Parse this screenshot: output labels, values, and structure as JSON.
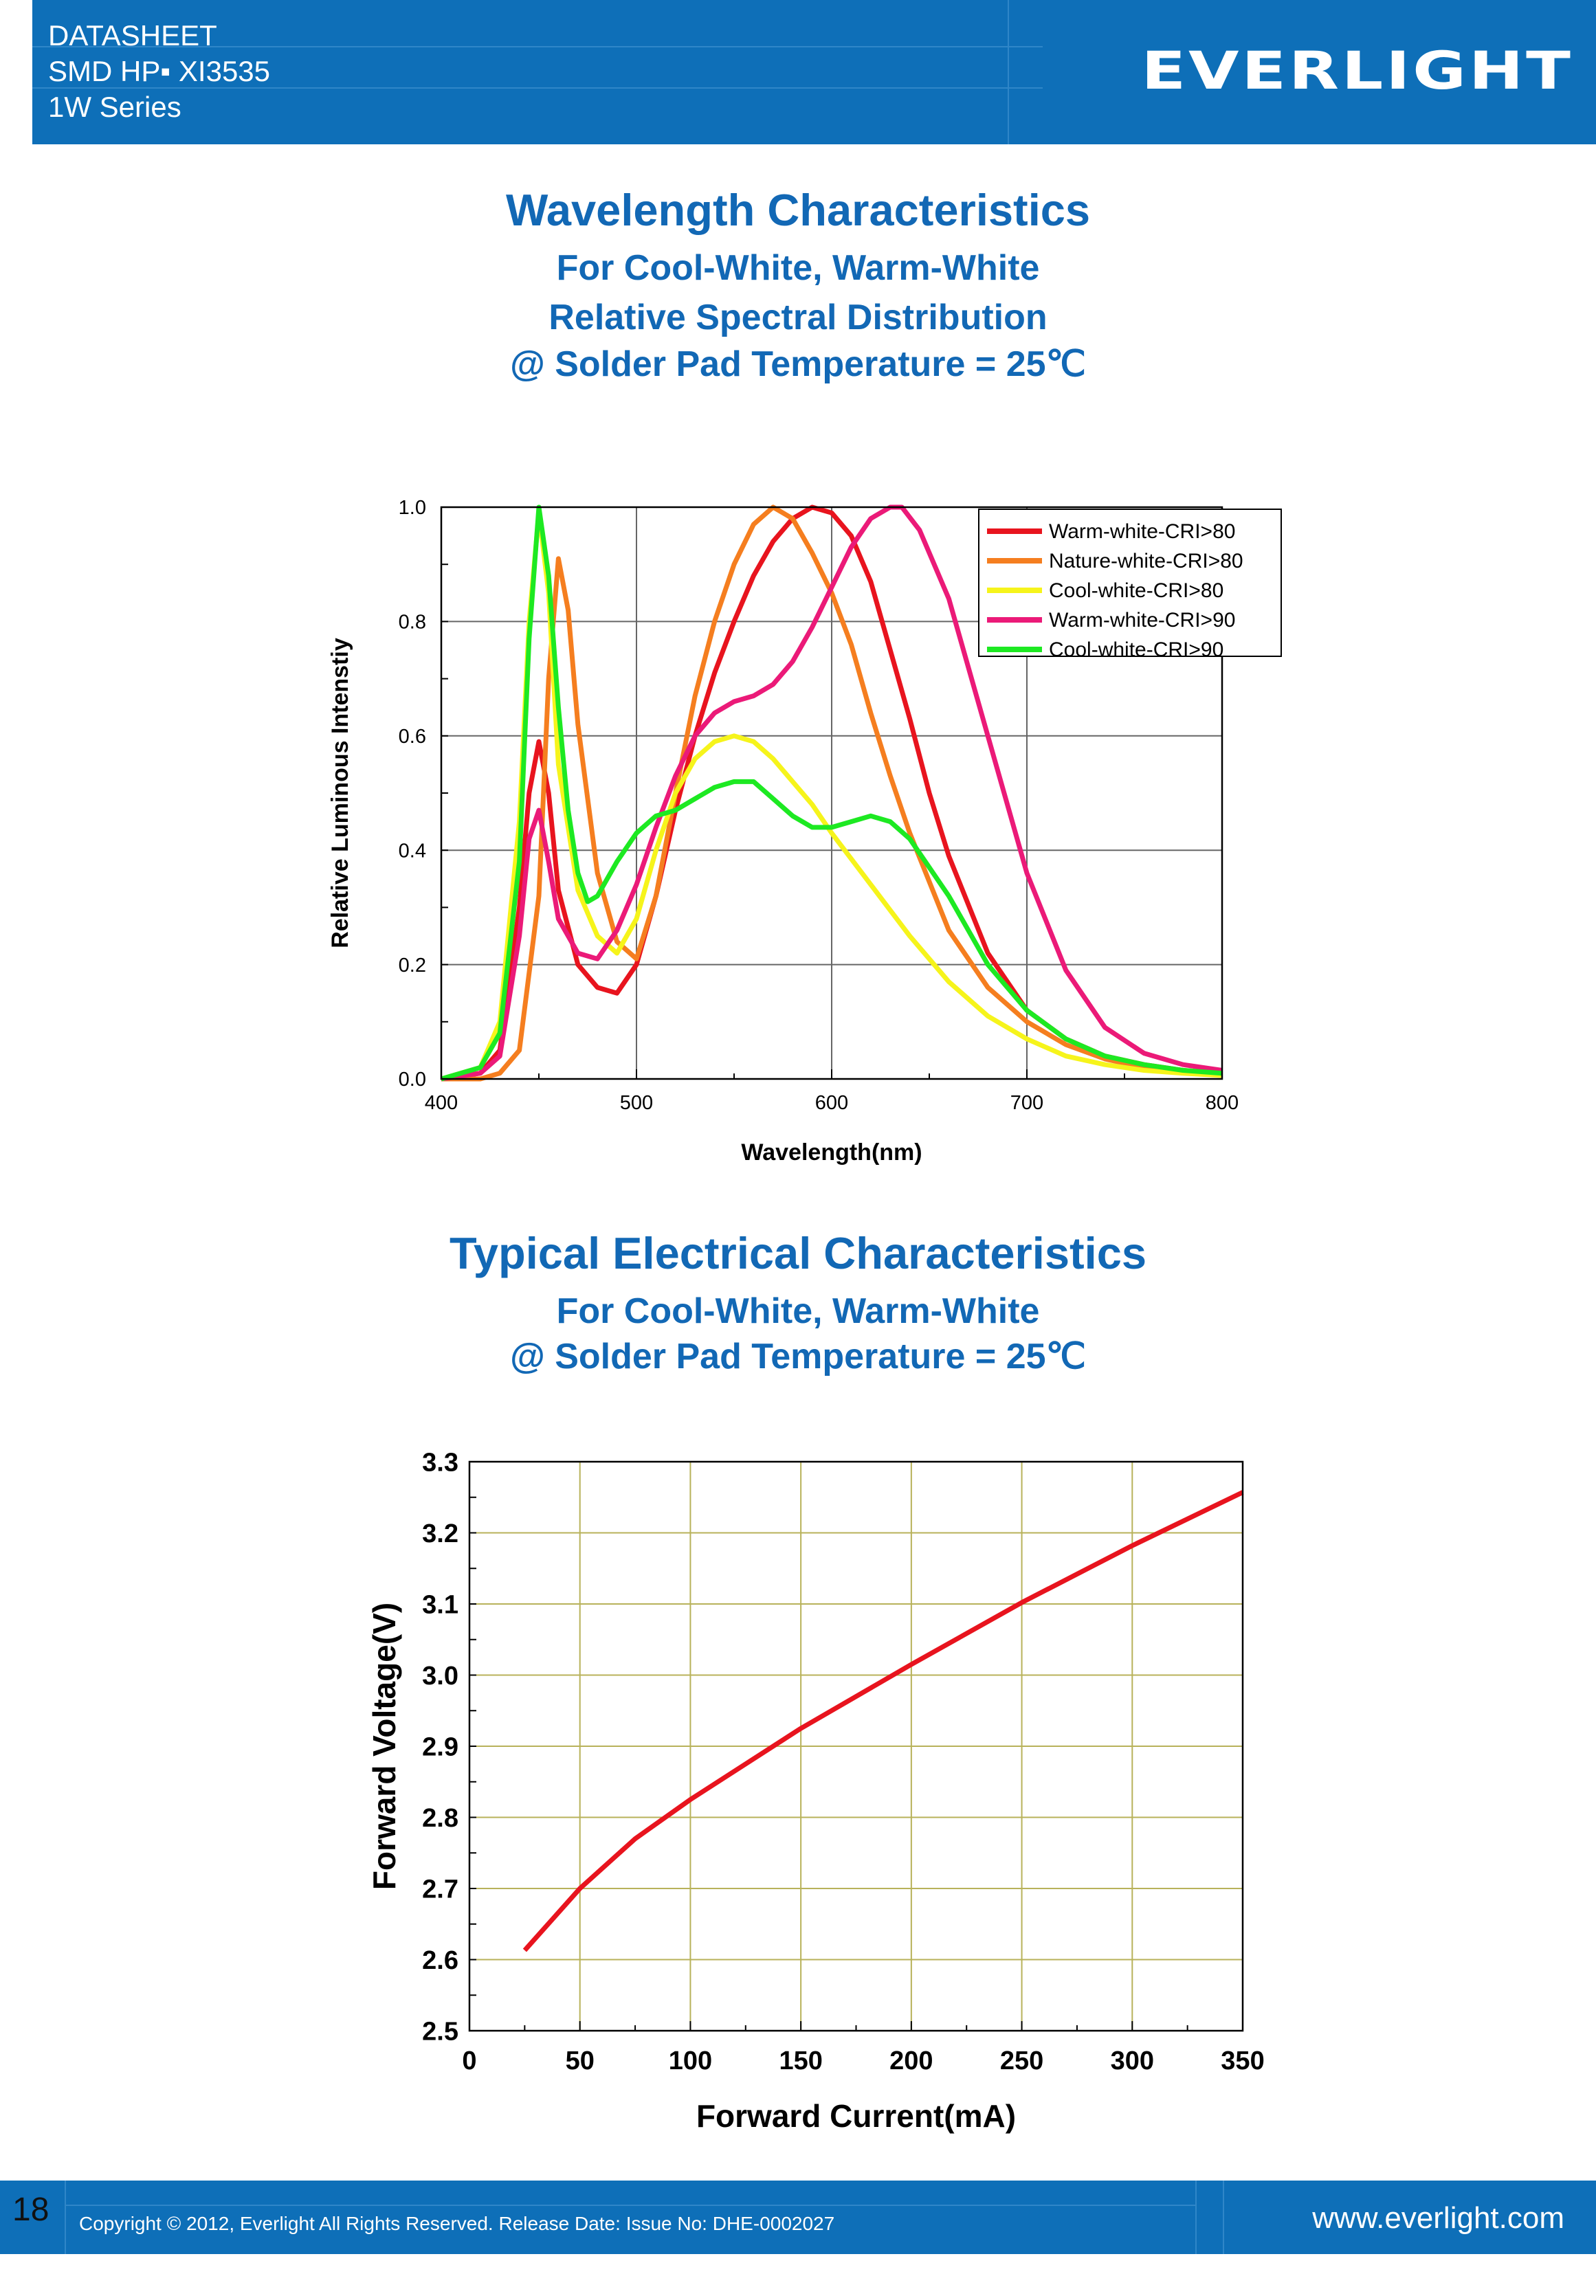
{
  "header": {
    "line1": "DATASHEET",
    "line2": "SMD HP▪ XI3535",
    "line3": "1W Series",
    "logo": "EVERLIGHT",
    "bg_color": "#0e6fb8"
  },
  "section1": {
    "title": "Wavelength Characteristics",
    "subtitle1": "For Cool-White, Warm-White",
    "subtitle2": "Relative Spectral Distribution",
    "subtitle3": "@ Solder Pad Temperature = 25℃"
  },
  "section2": {
    "title": "Typical Electrical Characteristics",
    "subtitle1": "For Cool-White, Warm-White",
    "subtitle2": "@ Solder Pad Temperature = 25℃"
  },
  "chart_data": [
    {
      "type": "line",
      "xlabel": "Wavelength(nm)",
      "ylabel": "Relative Luminous Intenstiy",
      "xlim": [
        400,
        800
      ],
      "ylim": [
        0,
        1.0
      ],
      "xticks": [
        "400",
        "500",
        "600",
        "700",
        "800"
      ],
      "yticks": [
        "0.0",
        "0.2",
        "0.4",
        "0.6",
        "0.8",
        "1.0"
      ],
      "grid": true,
      "legend_position": "top-right",
      "series": [
        {
          "name": "Warm-white-CRI>80",
          "color": "#e8141e",
          "x": [
            400,
            420,
            430,
            440,
            445,
            450,
            455,
            460,
            470,
            480,
            490,
            500,
            510,
            520,
            530,
            540,
            550,
            560,
            570,
            580,
            590,
            600,
            610,
            620,
            630,
            640,
            650,
            660,
            680,
            700,
            720,
            740,
            760,
            780,
            800
          ],
          "y": [
            0.0,
            0.01,
            0.05,
            0.3,
            0.5,
            0.59,
            0.5,
            0.33,
            0.2,
            0.16,
            0.15,
            0.2,
            0.32,
            0.47,
            0.6,
            0.71,
            0.8,
            0.88,
            0.94,
            0.98,
            1.0,
            0.99,
            0.95,
            0.87,
            0.75,
            0.63,
            0.5,
            0.39,
            0.22,
            0.12,
            0.07,
            0.04,
            0.025,
            0.015,
            0.01
          ]
        },
        {
          "name": "Nature-white-CRI>80",
          "color": "#f57e1f",
          "x": [
            400,
            420,
            430,
            440,
            450,
            455,
            460,
            465,
            470,
            480,
            490,
            500,
            510,
            520,
            530,
            540,
            550,
            560,
            570,
            580,
            590,
            600,
            610,
            620,
            630,
            640,
            660,
            680,
            700,
            720,
            740,
            760,
            780,
            800
          ],
          "y": [
            0.0,
            0.0,
            0.01,
            0.05,
            0.32,
            0.7,
            0.91,
            0.82,
            0.62,
            0.36,
            0.24,
            0.21,
            0.32,
            0.5,
            0.67,
            0.8,
            0.9,
            0.97,
            1.0,
            0.98,
            0.92,
            0.85,
            0.76,
            0.64,
            0.53,
            0.43,
            0.26,
            0.16,
            0.1,
            0.06,
            0.035,
            0.02,
            0.012,
            0.008
          ]
        },
        {
          "name": "Cool-white-CRI>80",
          "color": "#f6f41b",
          "x": [
            400,
            420,
            430,
            440,
            445,
            450,
            455,
            460,
            470,
            480,
            490,
            500,
            510,
            520,
            530,
            540,
            550,
            560,
            570,
            580,
            590,
            600,
            620,
            640,
            660,
            680,
            700,
            720,
            740,
            760,
            780,
            800
          ],
          "y": [
            0.0,
            0.02,
            0.1,
            0.45,
            0.8,
            0.99,
            0.85,
            0.55,
            0.33,
            0.25,
            0.22,
            0.28,
            0.4,
            0.5,
            0.56,
            0.59,
            0.6,
            0.59,
            0.56,
            0.52,
            0.48,
            0.43,
            0.34,
            0.25,
            0.17,
            0.11,
            0.07,
            0.04,
            0.025,
            0.015,
            0.01,
            0.006
          ]
        },
        {
          "name": "Warm-white-CRI>90",
          "color": "#eb1a78",
          "x": [
            400,
            420,
            430,
            440,
            445,
            450,
            455,
            460,
            470,
            480,
            490,
            500,
            510,
            520,
            530,
            540,
            550,
            560,
            570,
            580,
            590,
            600,
            610,
            620,
            630,
            636,
            645,
            660,
            680,
            700,
            720,
            740,
            760,
            780,
            800
          ],
          "y": [
            0.0,
            0.01,
            0.04,
            0.25,
            0.42,
            0.47,
            0.38,
            0.28,
            0.22,
            0.21,
            0.26,
            0.34,
            0.44,
            0.53,
            0.6,
            0.64,
            0.66,
            0.67,
            0.69,
            0.73,
            0.79,
            0.86,
            0.93,
            0.98,
            1.0,
            1.0,
            0.96,
            0.84,
            0.6,
            0.36,
            0.19,
            0.09,
            0.045,
            0.025,
            0.015
          ]
        },
        {
          "name": "Cool-white-CRI>90",
          "color": "#1de922",
          "x": [
            400,
            420,
            430,
            440,
            445,
            450,
            455,
            460,
            465,
            470,
            475,
            480,
            490,
            500,
            510,
            520,
            530,
            540,
            550,
            560,
            570,
            580,
            590,
            600,
            610,
            620,
            630,
            640,
            660,
            680,
            700,
            720,
            740,
            760,
            780,
            800
          ],
          "y": [
            0.0,
            0.02,
            0.08,
            0.38,
            0.77,
            1.0,
            0.88,
            0.65,
            0.47,
            0.36,
            0.31,
            0.32,
            0.38,
            0.43,
            0.46,
            0.47,
            0.49,
            0.51,
            0.52,
            0.52,
            0.49,
            0.46,
            0.44,
            0.44,
            0.45,
            0.46,
            0.45,
            0.42,
            0.32,
            0.2,
            0.12,
            0.07,
            0.04,
            0.025,
            0.015,
            0.01
          ]
        }
      ]
    },
    {
      "type": "line",
      "xlabel": "Forward Current(mA)",
      "ylabel": "Forward Voltage(V)",
      "xlim": [
        0,
        350
      ],
      "ylim": [
        2.5,
        3.3
      ],
      "xticks": [
        "0",
        "50",
        "100",
        "150",
        "200",
        "250",
        "300",
        "350"
      ],
      "yticks": [
        "2.5",
        "2.6",
        "2.7",
        "2.8",
        "2.9",
        "3.0",
        "3.1",
        "3.2",
        "3.3"
      ],
      "grid": true,
      "series": [
        {
          "color": "#e8141e",
          "x": [
            25,
            50,
            75,
            100,
            150,
            200,
            250,
            300,
            350
          ],
          "y": [
            2.613,
            2.7,
            2.77,
            2.825,
            2.925,
            3.015,
            3.102,
            3.182,
            3.257
          ]
        }
      ]
    }
  ],
  "footer": {
    "page_number": "18",
    "copyright": "Copyright © 2012, Everlight All Rights Reserved. Release Date: Issue No: DHE-0002027",
    "website": "www.everlight.com"
  }
}
